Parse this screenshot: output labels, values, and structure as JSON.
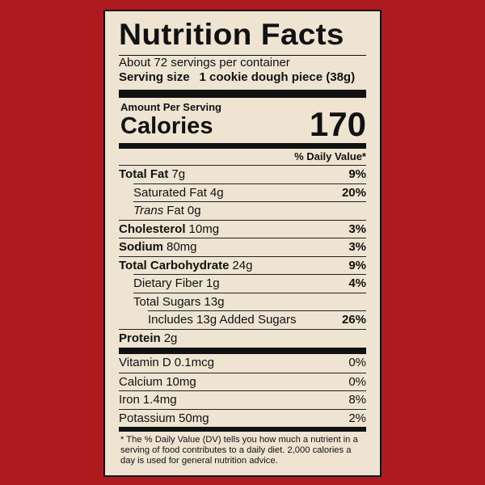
{
  "header": {
    "title": "Nutrition Facts",
    "servings_per_container": "About 72 servings per container",
    "serving_size_label": "Serving size",
    "serving_size_value": "1 cookie dough piece (38g)"
  },
  "calories": {
    "amount_per_serving": "Amount Per Serving",
    "label": "Calories",
    "value": "170"
  },
  "daily_value_header": "% Daily Value*",
  "nutrients": [
    {
      "name": "Total Fat",
      "amount": "7g",
      "dv": "9%",
      "bold": true,
      "level": 0
    },
    {
      "name": "Saturated Fat",
      "amount": "4g",
      "dv": "20%",
      "bold": false,
      "level": 1
    },
    {
      "name_italic": "Trans",
      "name": "Fat",
      "amount": "0g",
      "bold": false,
      "level": 1
    },
    {
      "name": "Cholesterol",
      "amount": "10mg",
      "dv": "3%",
      "bold": true,
      "level": 0
    },
    {
      "name": "Sodium",
      "amount": "80mg",
      "dv": "3%",
      "bold": true,
      "level": 0
    },
    {
      "name": "Total Carbohydrate",
      "amount": "24g",
      "dv": "9%",
      "bold": true,
      "level": 0
    },
    {
      "name": "Dietary Fiber",
      "amount": "1g",
      "dv": "4%",
      "bold": false,
      "level": 1
    },
    {
      "name": "Total Sugars",
      "amount": "13g",
      "bold": false,
      "level": 1
    },
    {
      "name": "Includes 13g Added Sugars",
      "dv": "26%",
      "bold": false,
      "level": 2
    },
    {
      "name": "Protein",
      "amount": "2g",
      "bold": true,
      "level": 0
    }
  ],
  "vitamins": [
    {
      "name": "Vitamin D",
      "amount": "0.1mcg",
      "dv": "0%"
    },
    {
      "name": "Calcium",
      "amount": "10mg",
      "dv": "0%"
    },
    {
      "name": "Iron",
      "amount": "1.4mg",
      "dv": "8%"
    },
    {
      "name": "Potassium",
      "amount": "50mg",
      "dv": "2%"
    }
  ],
  "footnote": "* The % Daily Value (DV) tells you how much a nutrient in a serving of food contributes to a daily diet. 2,000 calories a day is used for general nutrition advice."
}
